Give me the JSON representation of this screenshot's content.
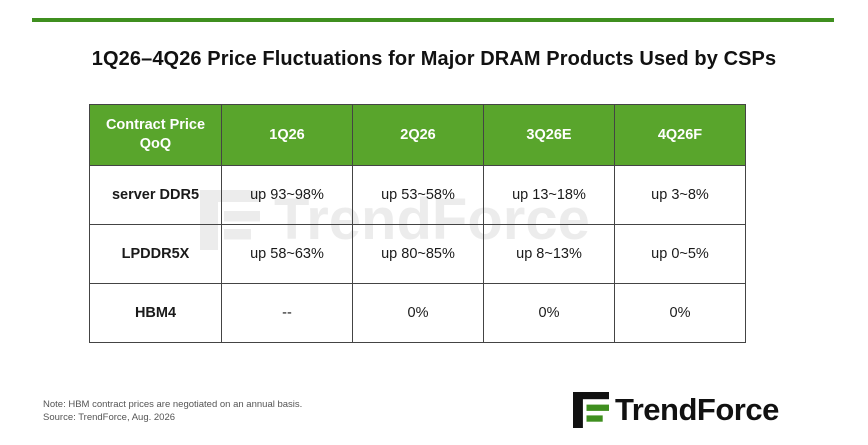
{
  "title": "1Q26–4Q26 Price Fluctuations for Major DRAM Products Used by CSPs",
  "colors": {
    "accent": "#3f8f1f",
    "header_bg": "#59a52c"
  },
  "table": {
    "corner_line1": "Contract Price",
    "corner_line2": "QoQ",
    "columns": [
      "1Q26",
      "2Q26",
      "3Q26E",
      "4Q26F"
    ],
    "rows": [
      {
        "label": "server DDR5",
        "cells": [
          "up 93~98%",
          "up 53~58%",
          "up 13~18%",
          "up 3~8%"
        ]
      },
      {
        "label": "LPDDR5X",
        "cells": [
          "up 58~63%",
          "up 80~85%",
          "up 8~13%",
          "up 0~5%"
        ]
      },
      {
        "label": "HBM4",
        "cells": [
          "--",
          "0%",
          "0%",
          "0%"
        ]
      }
    ]
  },
  "footnote": {
    "note": "Note: HBM contract prices are negotiated on an annual basis.",
    "source": "Source: TrendForce, Aug. 2026"
  },
  "logo": {
    "text": "TrendForce",
    "icon": "trendforce-logo-icon"
  },
  "watermark": {
    "text": "TrendForce"
  }
}
